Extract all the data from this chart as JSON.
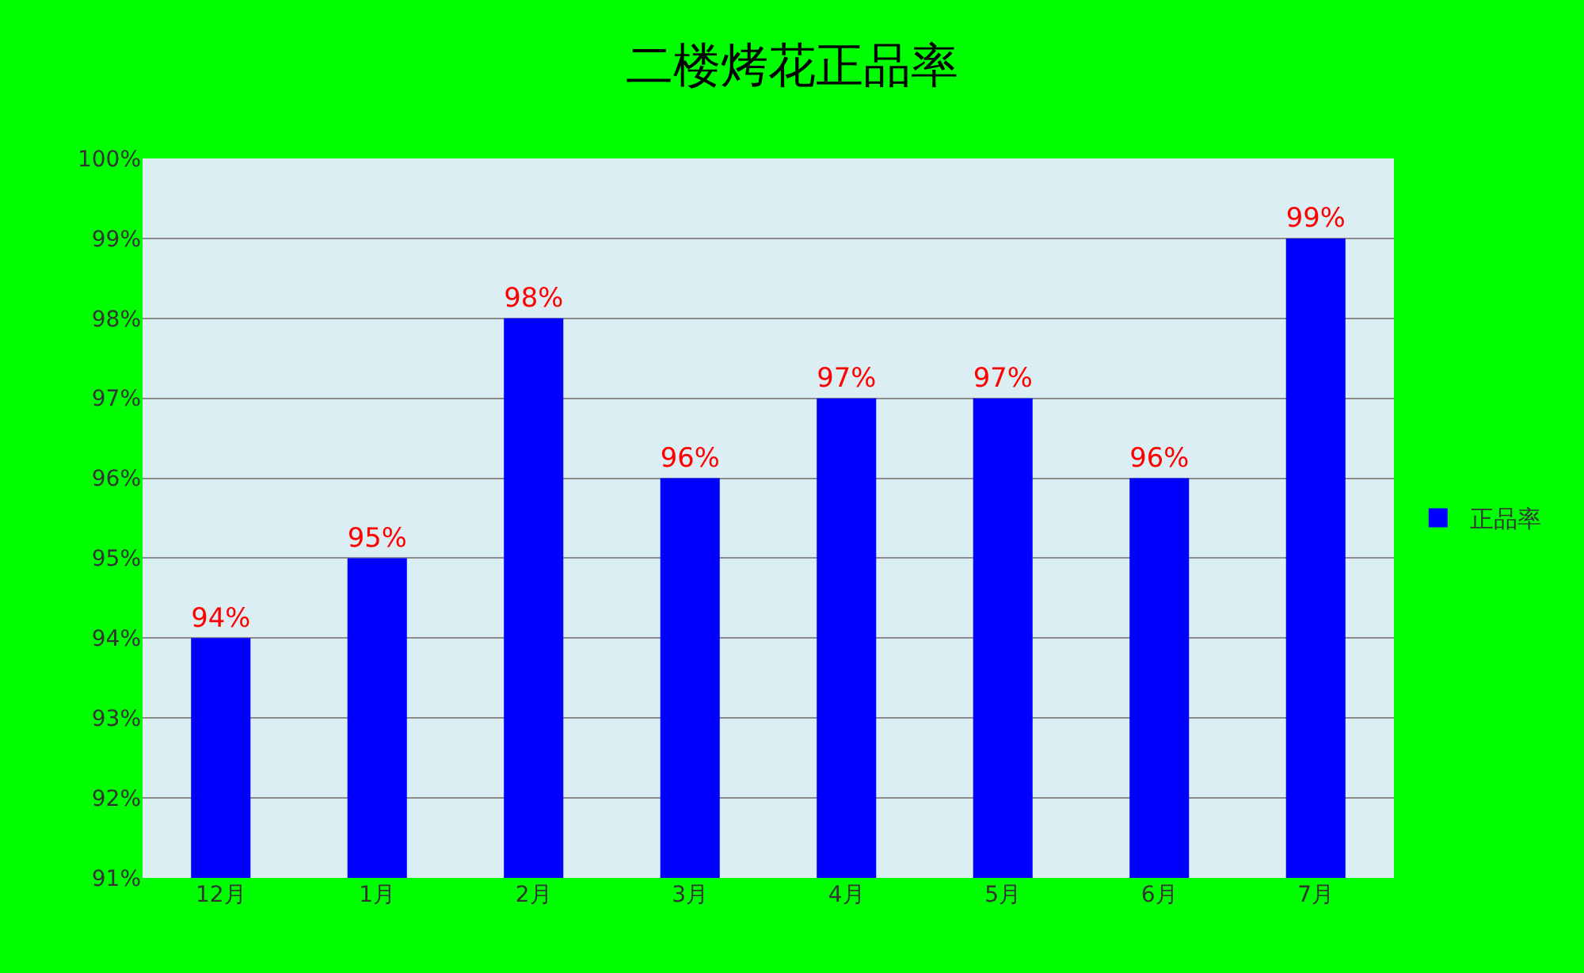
{
  "chart_data": {
    "type": "bar",
    "title": "二楼烤花正品率",
    "categories": [
      "12月",
      "1月",
      "2月",
      "3月",
      "4月",
      "5月",
      "6月",
      "7月"
    ],
    "series": [
      {
        "name": "正品率",
        "color": "#0000ff",
        "values": [
          94,
          95,
          98,
          96,
          97,
          97,
          96,
          99
        ],
        "value_labels": [
          "94%",
          "95%",
          "98%",
          "96%",
          "97%",
          "97%",
          "96%",
          "99%"
        ]
      }
    ],
    "ylim": [
      91,
      100
    ],
    "yticks": [
      {
        "value": 91,
        "label": "91%"
      },
      {
        "value": 92,
        "label": "92%"
      },
      {
        "value": 93,
        "label": "93%"
      },
      {
        "value": 94,
        "label": "94%"
      },
      {
        "value": 95,
        "label": "95%"
      },
      {
        "value": 96,
        "label": "96%"
      },
      {
        "value": 97,
        "label": "97%"
      },
      {
        "value": 98,
        "label": "98%"
      },
      {
        "value": 99,
        "label": "99%"
      },
      {
        "value": 100,
        "label": "100%"
      }
    ],
    "grid": "y",
    "legend": "right"
  }
}
